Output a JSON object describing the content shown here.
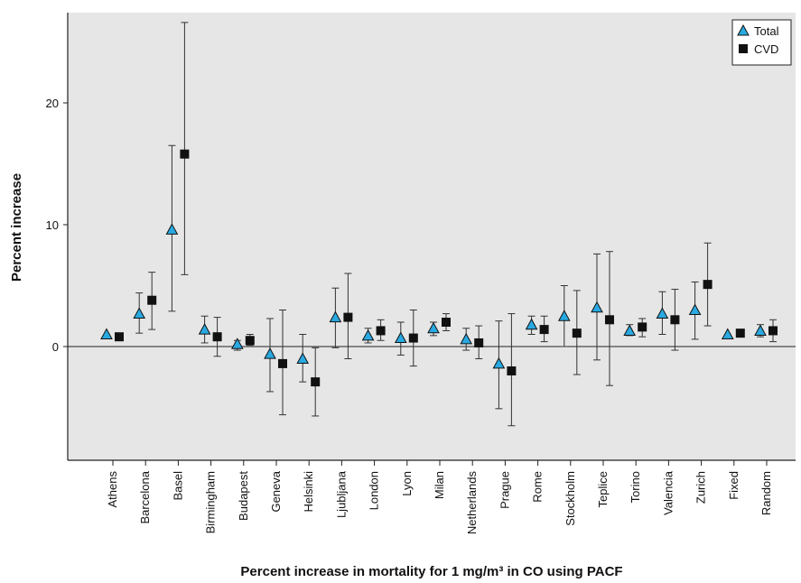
{
  "chart_data": {
    "type": "scatter",
    "title": "",
    "xlabel": "Percent increase in mortality for 1 mg/m³ in CO using PACF",
    "ylabel": "Percent increase",
    "ylim": [
      -9.5,
      27
    ],
    "yticks": [
      0,
      10,
      20
    ],
    "grid": false,
    "legend_position": "top-right",
    "categories": [
      "Athens",
      "Barcelona",
      "Basel",
      "Birmingham",
      "Budapest",
      "Geneva",
      "Helsinki",
      "Ljubljana",
      "London",
      "Lyon",
      "Milan",
      "Netherlands",
      "Prague",
      "Rome",
      "Stockholm",
      "Teplice",
      "Torino",
      "Valencia",
      "Zurich",
      "Fixed",
      "Random"
    ],
    "series": [
      {
        "name": "Total",
        "marker": "triangle",
        "color": "#29a9e1",
        "values": [
          1.0,
          2.7,
          9.6,
          1.4,
          0.2,
          -0.6,
          -1.0,
          2.4,
          0.9,
          0.7,
          1.5,
          0.6,
          -1.4,
          1.8,
          2.5,
          3.2,
          1.3,
          2.7,
          3.0,
          1.0,
          1.3
        ],
        "lower": [
          1.0,
          1.1,
          2.9,
          0.3,
          -0.3,
          -3.7,
          -2.9,
          -0.1,
          0.3,
          -0.7,
          0.9,
          -0.3,
          -5.1,
          1.0,
          0.0,
          -1.1,
          0.9,
          1.0,
          0.6,
          1.0,
          0.8
        ],
        "upper": [
          1.0,
          4.4,
          16.5,
          2.5,
          0.5,
          2.3,
          1.0,
          4.8,
          1.5,
          2.0,
          2.0,
          1.5,
          2.1,
          2.5,
          5.0,
          7.6,
          1.8,
          4.5,
          5.3,
          1.0,
          1.8
        ]
      },
      {
        "name": "CVD",
        "marker": "square",
        "color": "#111111",
        "values": [
          0.8,
          3.8,
          15.8,
          0.8,
          0.5,
          -1.4,
          -2.9,
          2.4,
          1.3,
          0.7,
          2.0,
          0.3,
          -2.0,
          1.4,
          1.1,
          2.2,
          1.6,
          2.2,
          5.1,
          1.1,
          1.3
        ],
        "lower": [
          0.5,
          1.4,
          5.9,
          -0.8,
          0.1,
          -5.6,
          -5.7,
          -1.0,
          0.5,
          -1.6,
          1.3,
          -1.0,
          -6.5,
          0.4,
          -2.3,
          -3.2,
          0.8,
          -0.3,
          1.7,
          1.1,
          0.4
        ],
        "upper": [
          1.1,
          6.1,
          26.6,
          2.4,
          1.0,
          3.0,
          -0.1,
          6.0,
          2.2,
          3.0,
          2.7,
          1.7,
          2.7,
          2.5,
          4.6,
          7.8,
          2.3,
          4.7,
          8.5,
          1.1,
          2.2
        ]
      }
    ]
  }
}
